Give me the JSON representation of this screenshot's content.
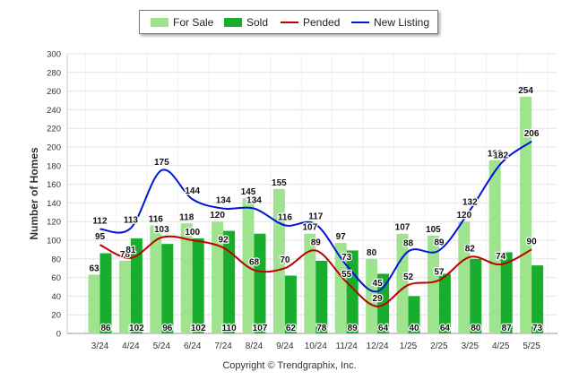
{
  "chart_data": {
    "type": "bar",
    "categories": [
      "3/24",
      "4/24",
      "5/24",
      "6/24",
      "7/24",
      "8/24",
      "9/24",
      "10/24",
      "11/24",
      "12/24",
      "1/25",
      "2/25",
      "3/25",
      "4/25",
      "5/25"
    ],
    "series": [
      {
        "name": "For Sale",
        "kind": "bar",
        "color": "#9ee38d",
        "values": [
          63,
          78,
          116,
          118,
          120,
          145,
          155,
          107,
          97,
          80,
          107,
          105,
          120,
          186,
          254
        ]
      },
      {
        "name": "Sold",
        "kind": "bar",
        "color": "#18ad2c",
        "values": [
          86,
          102,
          96,
          102,
          110,
          107,
          62,
          78,
          89,
          64,
          40,
          64,
          80,
          87,
          73
        ]
      },
      {
        "name": "Pended",
        "kind": "line",
        "color": "#c00000",
        "values": [
          95,
          81,
          103,
          100,
          92,
          68,
          70,
          89,
          55,
          29,
          52,
          57,
          82,
          74,
          90
        ]
      },
      {
        "name": "New Listing",
        "kind": "line",
        "color": "#0016d9",
        "values": [
          112,
          113,
          175,
          144,
          134,
          134,
          116,
          117,
          73,
          45,
          88,
          89,
          132,
          182,
          206
        ]
      }
    ],
    "title": "",
    "xlabel": "",
    "ylabel": "Number of Homes",
    "ylim": [
      0,
      300
    ],
    "yticks": [
      0,
      20,
      40,
      60,
      80,
      100,
      120,
      140,
      160,
      180,
      200,
      220,
      240,
      260,
      280,
      300
    ],
    "grid": true,
    "legend_position": "top-center"
  },
  "footer": {
    "copyright": "Copyright © Trendgraphix, Inc."
  }
}
